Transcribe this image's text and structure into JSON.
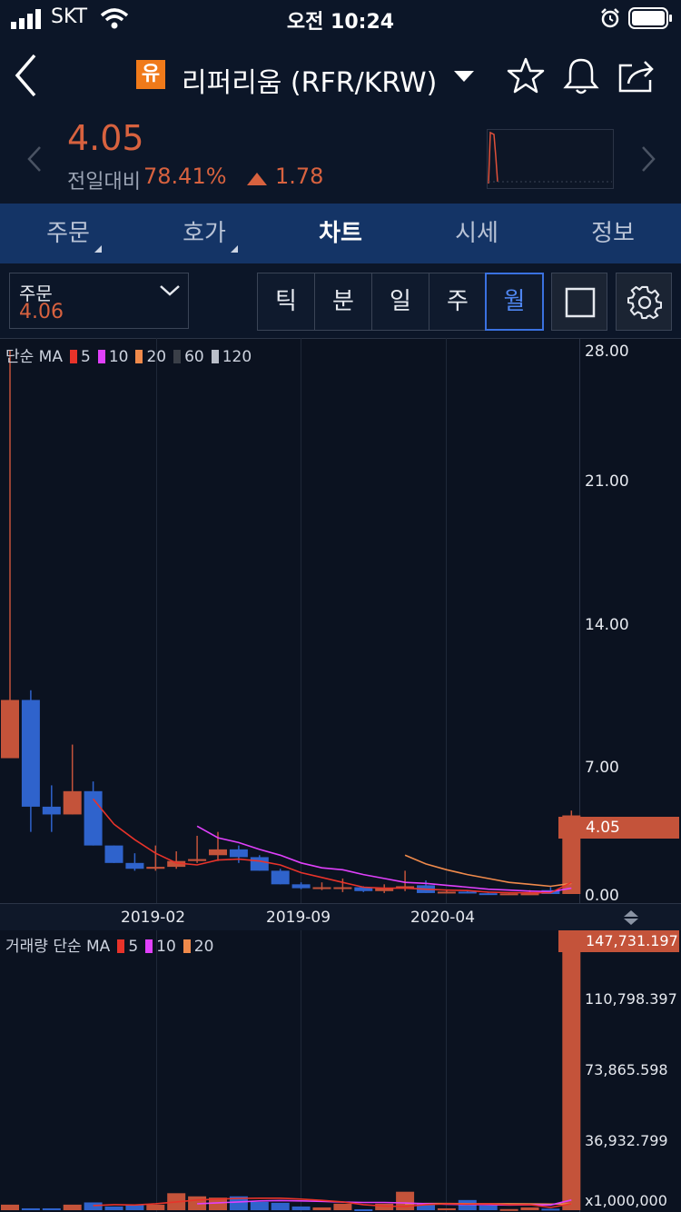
{
  "status_bar": {
    "carrier": "SKT",
    "time": "오전 10:24"
  },
  "nav": {
    "coin_badge": "유",
    "title": "리퍼리움 (RFR/KRW)"
  },
  "price_header": {
    "price": "4.05",
    "change_label": "전일대비",
    "change_pct": "78.41%",
    "change_abs": "1.78"
  },
  "tabs": [
    {
      "label": "주문"
    },
    {
      "label": "호가"
    },
    {
      "label": "차트"
    },
    {
      "label": "시세"
    },
    {
      "label": "정보"
    }
  ],
  "order_box": {
    "label": "주문",
    "value": "4.06"
  },
  "periods": [
    "틱",
    "분",
    "일",
    "주",
    "월"
  ],
  "active_period": "월",
  "legend": {
    "price": {
      "prefix": "단순 MA",
      "items": [
        {
          "period": "5",
          "color": "#e8332a"
        },
        {
          "period": "10",
          "color": "#e040fb"
        },
        {
          "period": "20",
          "color": "#f08a4b"
        },
        {
          "period": "60",
          "color": "#3a3f48"
        },
        {
          "period": "120",
          "color": "#b9bec8"
        }
      ]
    },
    "volume": {
      "prefix": "거래량 단순 MA",
      "items": [
        {
          "period": "5",
          "color": "#e8332a"
        },
        {
          "period": "10",
          "color": "#e040fb"
        },
        {
          "period": "20",
          "color": "#f08a4b"
        }
      ]
    }
  },
  "price_axis": [
    "28.00",
    "21.00",
    "14.00",
    "7.00",
    "0.00"
  ],
  "current_price_tag": "4.05",
  "date_axis": [
    "2019-02",
    "2019-09",
    "2020-04"
  ],
  "volume_axis": [
    "147,731.197",
    "110,798.397",
    "73,865.598",
    "36,932.799",
    "x1,000,000"
  ],
  "colors": {
    "up": "#c4533a",
    "down": "#2f63cc",
    "background": "#0c1628",
    "tabbar": "#143466"
  },
  "chart_data": {
    "type": "candlestick",
    "ylim": [
      0,
      28
    ],
    "volume_ylim": [
      0,
      147.731197
    ],
    "candles": [
      {
        "o": 7.0,
        "h": 28.0,
        "l": 7.0,
        "c": 10.0
      },
      {
        "o": 10.0,
        "h": 10.5,
        "l": 3.2,
        "c": 4.5
      },
      {
        "o": 4.5,
        "h": 5.6,
        "l": 3.2,
        "c": 4.1
      },
      {
        "o": 4.1,
        "h": 7.7,
        "l": 4.1,
        "c": 5.3
      },
      {
        "o": 5.3,
        "h": 5.8,
        "l": 2.5,
        "c": 2.5
      },
      {
        "o": 2.5,
        "h": 2.5,
        "l": 1.6,
        "c": 1.6
      },
      {
        "o": 1.6,
        "h": 2.1,
        "l": 1.2,
        "c": 1.3
      },
      {
        "o": 1.3,
        "h": 2.5,
        "l": 1.2,
        "c": 1.4
      },
      {
        "o": 1.4,
        "h": 2.2,
        "l": 1.3,
        "c": 1.7
      },
      {
        "o": 1.7,
        "h": 3.0,
        "l": 1.6,
        "c": 1.8
      },
      {
        "o": 2.0,
        "h": 3.2,
        "l": 1.7,
        "c": 2.3
      },
      {
        "o": 2.3,
        "h": 2.5,
        "l": 1.6,
        "c": 1.9
      },
      {
        "o": 1.9,
        "h": 2.0,
        "l": 1.2,
        "c": 1.2
      },
      {
        "o": 1.2,
        "h": 1.3,
        "l": 0.5,
        "c": 0.5
      },
      {
        "o": 0.5,
        "h": 0.6,
        "l": 0.25,
        "c": 0.3
      },
      {
        "o": 0.3,
        "h": 0.6,
        "l": 0.2,
        "c": 0.35
      },
      {
        "o": 0.35,
        "h": 0.8,
        "l": 0.1,
        "c": 0.35
      },
      {
        "o": 0.35,
        "h": 0.4,
        "l": 0.1,
        "c": 0.15
      },
      {
        "o": 0.15,
        "h": 0.5,
        "l": 0.05,
        "c": 0.3
      },
      {
        "o": 0.3,
        "h": 1.2,
        "l": 0.15,
        "c": 0.4
      },
      {
        "o": 0.45,
        "h": 0.7,
        "l": 0.05,
        "c": 0.05
      },
      {
        "o": 0.05,
        "h": 0.2,
        "l": 0.03,
        "c": 0.12
      },
      {
        "o": 0.12,
        "h": 0.2,
        "l": 0.04,
        "c": 0.04
      },
      {
        "o": 0.04,
        "h": 0.06,
        "l": 0.03,
        "c": 0.03
      },
      {
        "o": 0.03,
        "h": 0.05,
        "l": 0.03,
        "c": 0.03
      },
      {
        "o": 0.03,
        "h": 0.2,
        "l": 0.03,
        "c": 0.03
      },
      {
        "o": 0.2,
        "h": 0.35,
        "l": 0.0,
        "c": 0.0
      },
      {
        "o": 0.0,
        "h": 4.3,
        "l": 0.0,
        "c": 4.05
      }
    ],
    "ma5": [
      null,
      null,
      null,
      null,
      4.9,
      3.6,
      2.8,
      2.1,
      1.6,
      1.5,
      1.75,
      1.8,
      1.7,
      1.5,
      1.1,
      0.85,
      0.6,
      0.35,
      0.3,
      0.3,
      0.25,
      0.2,
      0.18,
      0.1,
      0.07,
      0.06,
      0.06,
      0.6
    ],
    "ma10": [
      null,
      null,
      null,
      null,
      null,
      null,
      null,
      null,
      null,
      3.5,
      2.9,
      2.65,
      2.3,
      2.0,
      1.6,
      1.35,
      1.25,
      1.0,
      0.8,
      0.6,
      0.55,
      0.45,
      0.35,
      0.25,
      0.2,
      0.15,
      0.12,
      0.3
    ],
    "ma20": [
      null,
      null,
      null,
      null,
      null,
      null,
      null,
      null,
      null,
      null,
      null,
      null,
      null,
      null,
      null,
      null,
      null,
      null,
      null,
      2.0,
      1.55,
      1.25,
      1.0,
      0.8,
      0.6,
      0.5,
      0.4,
      0.55
    ],
    "volume": [
      3.0,
      1.0,
      1.0,
      3.0,
      4.2,
      2.0,
      3.0,
      3.0,
      9.2,
      7.5,
      6.8,
      7.5,
      4.5,
      4.0,
      2.0,
      1.5,
      3.5,
      0.5,
      3.5,
      10.0,
      3.5,
      1.0,
      5.5,
      2.5,
      0.6,
      1.5,
      0.8,
      147.731197
    ],
    "volume_ma5": [
      null,
      null,
      null,
      null,
      2.5,
      3.0,
      2.8,
      3.5,
      4.5,
      5.5,
      6.0,
      6.4,
      6.5,
      6.5,
      6.0,
      5.3,
      4.5,
      3.0,
      2.2,
      2.0,
      3.0,
      3.5,
      3.3,
      3.5,
      3.0,
      3.0,
      1.5,
      3.5
    ],
    "volume_ma10": [
      null,
      null,
      null,
      null,
      null,
      null,
      null,
      null,
      null,
      3.5,
      4.0,
      4.5,
      5.0,
      5.2,
      5.0,
      4.8,
      4.4,
      4.2,
      4.2,
      3.9,
      3.5,
      3.2,
      3.1,
      3.0,
      2.8,
      2.9,
      2.8,
      5.5
    ],
    "volume_ma20": [
      null,
      null,
      null,
      null,
      null,
      null,
      null,
      null,
      null,
      null,
      null,
      null,
      null,
      null,
      null,
      null,
      null,
      null,
      null,
      3.5,
      3.6,
      3.6,
      3.5,
      3.5,
      3.5,
      3.4,
      3.3,
      3.4
    ]
  }
}
